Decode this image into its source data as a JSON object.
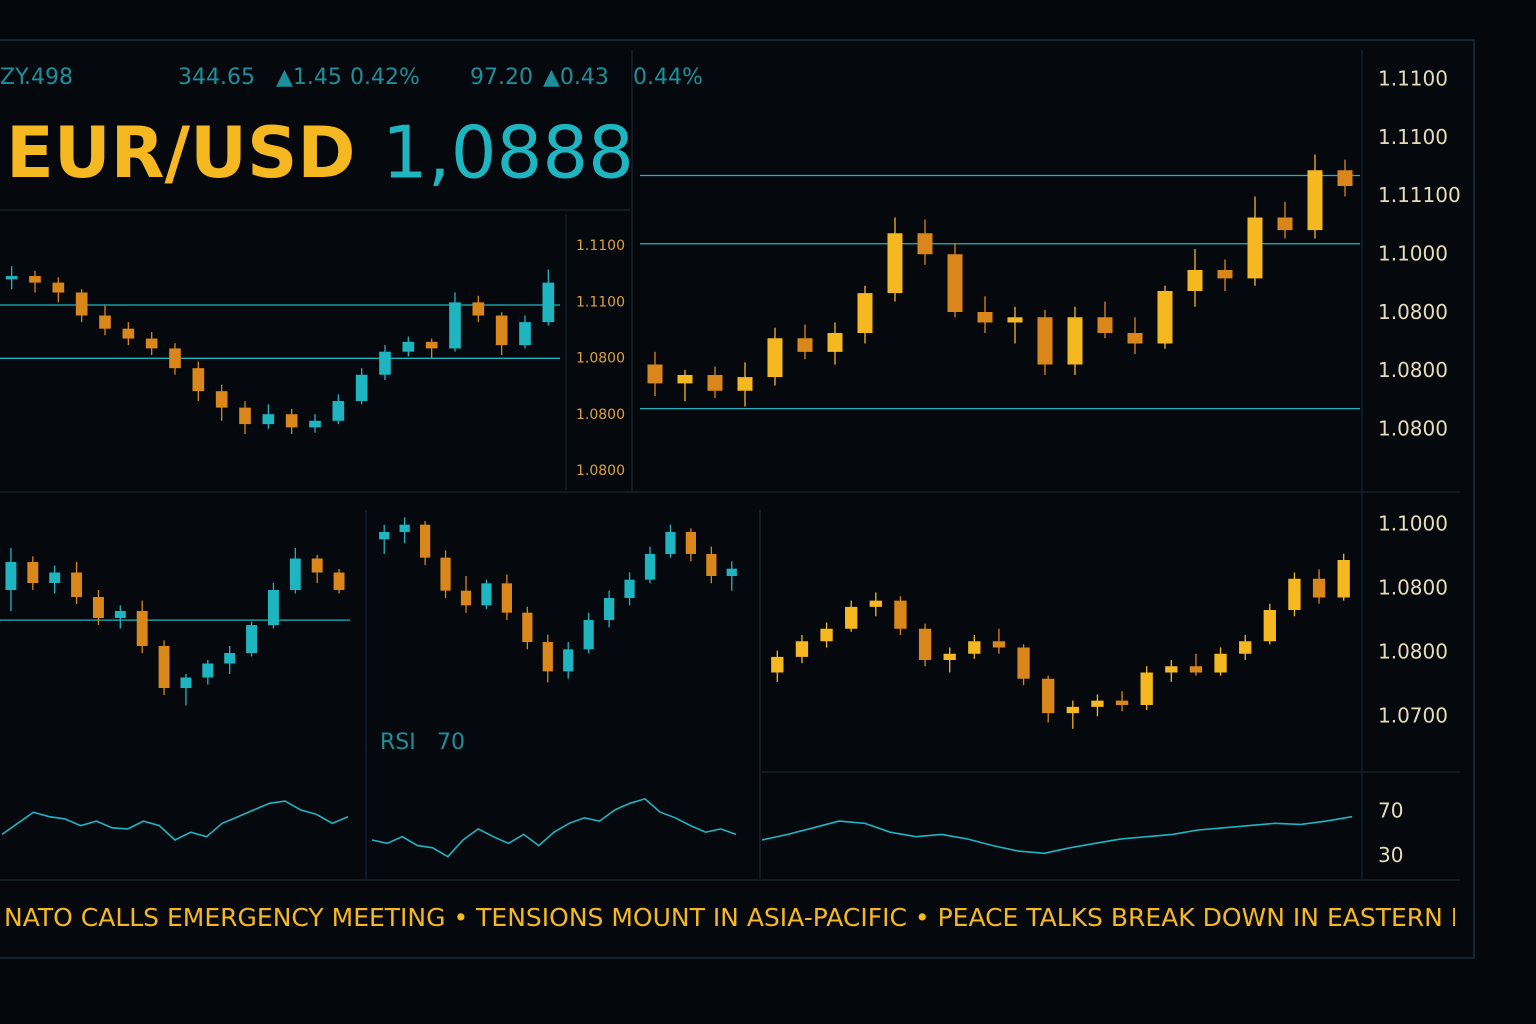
{
  "header": {
    "ticker": [
      "ZY.498",
      "344.65",
      "▲1.45",
      "0.42%",
      "97.20",
      "▲0.43",
      "0.44%"
    ],
    "symbol": "EUR/USD",
    "price": "1,0888"
  },
  "chart_data": [
    {
      "type": "candlestick",
      "up_color": "#f5b820",
      "down_color": "#d9871a",
      "ylim": [
        1.075,
        1.115
      ],
      "axis_labels": [
        "1.1100",
        "1.1100",
        "1.11100",
        "1.1000",
        "1.0800",
        "1.0800",
        "1.0800"
      ],
      "hlines": [
        1.104,
        1.0975,
        1.0818
      ],
      "hline_color": "#1fb5c0",
      "candles": [
        [
          1.086,
          1.0872,
          1.083,
          1.0842
        ],
        [
          1.0842,
          1.0855,
          1.0825,
          1.085
        ],
        [
          1.085,
          1.0858,
          1.0828,
          1.0835
        ],
        [
          1.0835,
          1.0862,
          1.082,
          1.0848
        ],
        [
          1.0848,
          1.0895,
          1.084,
          1.0885
        ],
        [
          1.0885,
          1.0898,
          1.0865,
          1.0872
        ],
        [
          1.0872,
          1.09,
          1.086,
          1.089
        ],
        [
          1.089,
          1.0935,
          1.088,
          1.0928
        ],
        [
          1.0928,
          1.1,
          1.092,
          1.0985
        ],
        [
          1.0985,
          1.0998,
          1.0955,
          1.0965
        ],
        [
          1.0965,
          1.0975,
          1.0905,
          1.091
        ],
        [
          1.091,
          1.0925,
          1.089,
          1.09
        ],
        [
          1.09,
          1.0915,
          1.088,
          1.0905
        ],
        [
          1.0905,
          1.0912,
          1.085,
          1.086
        ],
        [
          1.086,
          1.0915,
          1.085,
          1.0905
        ],
        [
          1.0905,
          1.092,
          1.0885,
          1.089
        ],
        [
          1.089,
          1.0905,
          1.087,
          1.088
        ],
        [
          1.088,
          1.0935,
          1.0875,
          1.093
        ],
        [
          1.093,
          1.097,
          1.0915,
          1.095
        ],
        [
          1.095,
          1.096,
          1.093,
          1.0942
        ],
        [
          1.0942,
          1.102,
          1.0935,
          1.1
        ],
        [
          1.1,
          1.1015,
          1.098,
          1.0988
        ],
        [
          1.0988,
          1.106,
          1.098,
          1.1045
        ],
        [
          1.1045,
          1.1055,
          1.102,
          1.103
        ]
      ]
    },
    {
      "type": "candlestick",
      "up_color": "#1fb5c0",
      "down_color": "#d9871a",
      "ylim": [
        1.076,
        1.114
      ],
      "axis_labels": [
        "1.1100",
        "1.1100",
        "1.0800",
        "1.0800",
        "1.0800"
      ],
      "hlines": [
        1.1026,
        1.0945
      ],
      "hline_color": "#1fb5c0",
      "candles": [
        [
          1.1065,
          1.1085,
          1.105,
          1.107
        ],
        [
          1.107,
          1.1078,
          1.1045,
          1.106
        ],
        [
          1.106,
          1.1068,
          1.103,
          1.1045
        ],
        [
          1.1045,
          1.105,
          1.1,
          1.101
        ],
        [
          1.101,
          1.1025,
          1.098,
          1.099
        ],
        [
          1.099,
          1.1,
          1.0965,
          1.0975
        ],
        [
          1.0975,
          1.0985,
          1.095,
          1.096
        ],
        [
          1.096,
          1.0968,
          1.092,
          1.093
        ],
        [
          1.093,
          1.094,
          1.088,
          1.0895
        ],
        [
          1.0895,
          1.0905,
          1.085,
          1.087
        ],
        [
          1.087,
          1.088,
          1.083,
          1.0845
        ],
        [
          1.0845,
          1.0875,
          1.0838,
          1.086
        ],
        [
          1.086,
          1.0868,
          1.083,
          1.084
        ],
        [
          1.084,
          1.086,
          1.0832,
          1.085
        ],
        [
          1.085,
          1.089,
          1.0845,
          1.088
        ],
        [
          1.088,
          1.093,
          1.0875,
          1.092
        ],
        [
          1.092,
          1.0965,
          1.0912,
          1.0955
        ],
        [
          1.0955,
          1.0978,
          1.0948,
          1.097
        ],
        [
          1.097,
          1.0975,
          1.0945,
          1.096
        ],
        [
          1.096,
          1.1045,
          1.0955,
          1.103
        ],
        [
          1.103,
          1.104,
          1.1,
          1.101
        ],
        [
          1.101,
          1.1015,
          1.095,
          1.0965
        ],
        [
          1.0965,
          1.101,
          1.096,
          1.1
        ],
        [
          1.1,
          1.108,
          1.0995,
          1.106
        ]
      ]
    },
    {
      "type": "candlestick",
      "up_color": "#1fb5c0",
      "down_color": "#d9871a",
      "ylim": [
        1.075,
        1.105
      ],
      "hlines": [
        1.0907
      ],
      "hline_color": "#1fb5c0",
      "candles": [
        [
          1.095,
          1.101,
          1.092,
          1.099
        ],
        [
          1.099,
          1.0998,
          1.095,
          1.096
        ],
        [
          1.096,
          1.0985,
          1.0945,
          1.0975
        ],
        [
          1.0975,
          1.099,
          1.093,
          1.094
        ],
        [
          1.094,
          1.095,
          1.09,
          1.091
        ],
        [
          1.091,
          1.0928,
          1.0895,
          1.092
        ],
        [
          1.092,
          1.0935,
          1.086,
          1.087
        ],
        [
          1.087,
          1.0878,
          1.08,
          1.081
        ],
        [
          1.081,
          1.083,
          1.0785,
          1.0825
        ],
        [
          1.0825,
          1.085,
          1.0815,
          1.0845
        ],
        [
          1.0845,
          1.087,
          1.083,
          1.086
        ],
        [
          1.086,
          1.0905,
          1.0855,
          1.09
        ],
        [
          1.09,
          1.096,
          1.0895,
          1.095
        ],
        [
          1.095,
          1.101,
          1.0945,
          1.0995
        ],
        [
          1.0995,
          1.1,
          1.096,
          1.0975
        ],
        [
          1.0975,
          1.098,
          1.0945,
          1.095
        ]
      ]
    },
    {
      "type": "candlestick",
      "up_color": "#1fb5c0",
      "down_color": "#d9871a",
      "ylim": [
        1.075,
        1.105
      ],
      "candles": [
        [
          1.101,
          1.103,
          1.099,
          1.102
        ],
        [
          1.102,
          1.104,
          1.1005,
          1.103
        ],
        [
          1.103,
          1.1035,
          1.0975,
          1.0985
        ],
        [
          1.0985,
          1.0995,
          1.093,
          1.094
        ],
        [
          1.094,
          1.096,
          1.091,
          1.092
        ],
        [
          1.092,
          1.0955,
          1.0915,
          1.095
        ],
        [
          1.095,
          1.0962,
          1.09,
          1.091
        ],
        [
          1.091,
          1.0918,
          1.086,
          1.087
        ],
        [
          1.087,
          1.088,
          1.0815,
          1.083
        ],
        [
          1.083,
          1.087,
          1.082,
          1.086
        ],
        [
          1.086,
          1.091,
          1.0855,
          1.09
        ],
        [
          1.09,
          1.094,
          1.089,
          1.093
        ],
        [
          1.093,
          1.0965,
          1.092,
          1.0955
        ],
        [
          1.0955,
          1.1,
          1.095,
          1.099
        ],
        [
          1.099,
          1.103,
          1.0985,
          1.102
        ],
        [
          1.102,
          1.1025,
          1.098,
          1.099
        ],
        [
          1.099,
          1.1,
          1.095,
          1.096
        ],
        [
          1.096,
          1.098,
          1.094,
          1.097
        ]
      ]
    },
    {
      "type": "candlestick",
      "up_color": "#f5b820",
      "down_color": "#d9871a",
      "ylim": [
        1.065,
        1.105
      ],
      "axis_labels": [
        "1.1000",
        "1.0800",
        "1.0800",
        "1.0700"
      ],
      "candles": [
        [
          1.079,
          1.0825,
          1.0775,
          1.0815
        ],
        [
          1.0815,
          1.085,
          1.0805,
          1.084
        ],
        [
          1.084,
          1.087,
          1.083,
          1.086
        ],
        [
          1.086,
          1.0905,
          1.0855,
          1.0895
        ],
        [
          1.0895,
          1.0918,
          1.088,
          1.0905
        ],
        [
          1.0905,
          1.0912,
          1.085,
          1.086
        ],
        [
          1.086,
          1.0868,
          1.08,
          1.081
        ],
        [
          1.081,
          1.083,
          1.079,
          1.082
        ],
        [
          1.082,
          1.085,
          1.0812,
          1.084
        ],
        [
          1.084,
          1.086,
          1.082,
          1.083
        ],
        [
          1.083,
          1.0835,
          1.077,
          1.078
        ],
        [
          1.078,
          1.0785,
          1.071,
          1.0725
        ],
        [
          1.0725,
          1.0745,
          1.07,
          1.0735
        ],
        [
          1.0735,
          1.0755,
          1.072,
          1.0745
        ],
        [
          1.0745,
          1.076,
          1.0728,
          1.0738
        ],
        [
          1.0738,
          1.08,
          1.073,
          1.079
        ],
        [
          1.079,
          1.081,
          1.0775,
          1.08
        ],
        [
          1.08,
          1.082,
          1.0785,
          1.079
        ],
        [
          1.079,
          1.083,
          1.0785,
          1.082
        ],
        [
          1.082,
          1.085,
          1.081,
          1.084
        ],
        [
          1.084,
          1.09,
          1.0835,
          1.089
        ],
        [
          1.089,
          1.095,
          1.088,
          1.094
        ],
        [
          1.094,
          1.0955,
          1.09,
          1.091
        ],
        [
          1.091,
          1.098,
          1.0905,
          1.097
        ]
      ]
    },
    {
      "type": "line",
      "color": "#1fb5c0",
      "ylim": [
        18,
        90
      ],
      "values": [
        50,
        60,
        70,
        66,
        64,
        58,
        62,
        56,
        55,
        62,
        58,
        45,
        52,
        48,
        60,
        66,
        72,
        78,
        80,
        72,
        68,
        60,
        66
      ]
    },
    {
      "type": "line",
      "color": "#1fb5c0",
      "ylim": [
        18,
        90
      ],
      "title": "RSI",
      "level": 70,
      "values": [
        45,
        42,
        48,
        40,
        38,
        30,
        45,
        55,
        48,
        42,
        50,
        40,
        52,
        60,
        65,
        62,
        72,
        78,
        82,
        70,
        65,
        58,
        52,
        55,
        50
      ]
    },
    {
      "type": "line",
      "color": "#1fb5c0",
      "ylim": [
        18,
        90
      ],
      "yticks": [
        70,
        30
      ],
      "values": [
        45,
        50,
        56,
        62,
        60,
        52,
        48,
        50,
        46,
        40,
        35,
        33,
        38,
        42,
        46,
        48,
        50,
        54,
        56,
        58,
        60,
        59,
        62,
        66
      ]
    }
  ],
  "news": "NATO CALLS EMERGENCY MEETING • TENSIONS MOUNT IN ASIA-PACIFIC • PEACE TALKS BREAK DOWN IN EASTERN EUROPE"
}
